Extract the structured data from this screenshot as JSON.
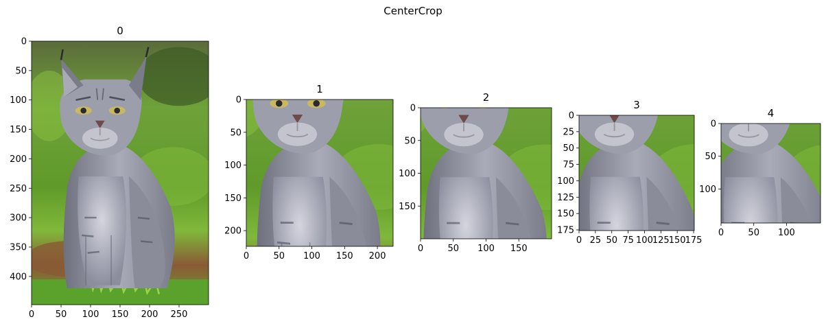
{
  "suptitle": "CenterCrop",
  "chart_data": [
    {
      "type": "image",
      "title": "0",
      "width": 300,
      "height": 448,
      "xticks": [
        0,
        50,
        100,
        150,
        200,
        250
      ],
      "yticks": [
        0,
        50,
        100,
        150,
        200,
        250,
        300,
        350,
        400
      ],
      "crop_box": [
        0,
        0,
        300,
        448
      ]
    },
    {
      "type": "image",
      "title": "1",
      "width": 224,
      "height": 224,
      "xticks": [
        0,
        50,
        100,
        150,
        200
      ],
      "yticks": [
        0,
        50,
        100,
        150,
        200
      ],
      "crop_box": [
        38,
        112,
        262,
        336
      ]
    },
    {
      "type": "image",
      "title": "2",
      "width": 200,
      "height": 200,
      "xticks": [
        0,
        50,
        100,
        150
      ],
      "yticks": [
        0,
        50,
        100,
        150
      ],
      "crop_box": [
        50,
        124,
        250,
        324
      ]
    },
    {
      "type": "image",
      "title": "3",
      "width": 176,
      "height": 176,
      "xticks": [
        0,
        25,
        50,
        75,
        100,
        125,
        150,
        175
      ],
      "yticks": [
        0,
        25,
        50,
        75,
        100,
        125,
        150,
        175
      ],
      "crop_box": [
        62,
        136,
        238,
        312
      ]
    },
    {
      "type": "image",
      "title": "4",
      "width": 152,
      "height": 152,
      "xticks": [
        0,
        50,
        100
      ],
      "yticks": [
        0,
        50,
        100
      ],
      "crop_box": [
        74,
        148,
        226,
        300
      ]
    }
  ],
  "colors": {
    "grass": "#5f9a2a",
    "grass_light": "#8ac23e",
    "grass_dark": "#2f5a18",
    "dirt": "#8a5a36",
    "fur": "#8c8e9e",
    "fur_light": "#c9cad6",
    "fur_dark": "#4e4f5c",
    "eye": "#c8b860",
    "nose": "#6e4a48"
  }
}
